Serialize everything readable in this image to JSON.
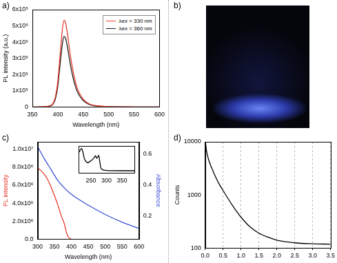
{
  "chart_data": [
    {
      "type": "line",
      "title": "a)",
      "x_label": "Wavelength (nm)",
      "y_label": "PL intensity (a.u.)",
      "x": [
        350,
        360,
        370,
        380,
        385,
        390,
        395,
        400,
        403,
        406,
        409,
        412,
        415,
        418,
        421,
        425,
        430,
        435,
        440,
        450,
        460,
        470,
        480,
        500,
        520,
        550,
        600
      ],
      "series": [
        {
          "name": "λex = 330 nm",
          "color": "#e8392b",
          "values": [
            0,
            500,
            1500,
            4000,
            8000,
            20000,
            60000,
            160000,
            270000,
            380000,
            480000,
            535000,
            520000,
            470000,
            400000,
            310000,
            220000,
            150000,
            100000,
            48000,
            22000,
            11000,
            6000,
            2000,
            1000,
            500,
            0
          ]
        },
        {
          "name": "λex = 360 nm",
          "color": "#1a1a1a",
          "values": [
            0,
            400,
            1200,
            3200,
            6500,
            16000,
            48000,
            130000,
            220000,
            310000,
            390000,
            435000,
            425000,
            385000,
            330000,
            255000,
            180000,
            122000,
            82000,
            40000,
            18000,
            9000,
            5000,
            1600,
            800,
            400,
            0
          ]
        }
      ],
      "xlim": [
        350,
        600
      ],
      "xticks": [
        350,
        400,
        450,
        500,
        550,
        600
      ],
      "ylim": [
        0,
        600000
      ],
      "yticks": [
        0,
        {
          "value": 100000,
          "label": "1x10⁵"
        },
        {
          "value": 200000,
          "label": "2x10⁵"
        },
        {
          "value": 300000,
          "label": "3x10⁵"
        },
        {
          "value": 400000,
          "label": "4x10⁵"
        },
        {
          "value": 500000,
          "label": "5x10⁵"
        },
        {
          "value": 600000,
          "label": "6x10⁵"
        }
      ],
      "grid": false,
      "legend": "upper right"
    },
    {
      "type": "image",
      "title": "b)"
    },
    {
      "type": "line",
      "title": "c)",
      "x_label": "Wavelength (nm)",
      "y_label": "PL intensity",
      "y2_label": "Absorbance",
      "series": [
        {
          "color": "#e8392b",
          "x": [
            300,
            310,
            320,
            330,
            340,
            350,
            360,
            370,
            380,
            385,
            390,
            395,
            400
          ],
          "values": [
            7900000,
            7600000,
            7200000,
            6600000,
            5800000,
            4800000,
            3800000,
            2600000,
            1600000,
            800000,
            300000,
            100000,
            0
          ]
        },
        {
          "color": "#3a4fd6",
          "axis": "y2",
          "x": [
            300,
            320,
            340,
            360,
            380,
            400,
            420,
            450,
            500,
            550,
            600
          ],
          "values": [
            0.65,
            0.57,
            0.5,
            0.43,
            0.38,
            0.34,
            0.31,
            0.27,
            0.21,
            0.16,
            0.12
          ]
        }
      ],
      "xlim": [
        300,
        600
      ],
      "xticks": [
        300,
        350,
        400,
        450,
        500,
        550,
        600
      ],
      "ylim": [
        0,
        10800000
      ],
      "yticks": [
        {
          "value": 0,
          "label": "0.0"
        },
        {
          "value": 2000000,
          "label": "2.0x10⁶"
        },
        {
          "value": 4000000,
          "label": "4.0x10⁶"
        },
        {
          "value": 6000000,
          "label": "6.0x10⁶"
        },
        {
          "value": 8000000,
          "label": "8.0x10⁶"
        },
        {
          "value": 10000000,
          "label": "1.0x10⁷"
        }
      ],
      "y2lim": [
        0.05,
        0.68
      ],
      "y2ticks": [
        0.2,
        0.4,
        0.6
      ],
      "grid": false,
      "inset": {
        "type": "line",
        "color": "#000000",
        "x": [
          212,
          216,
          220,
          224,
          228,
          232,
          236,
          240,
          245,
          250,
          255,
          260,
          265,
          268,
          272,
          275,
          278,
          282,
          290,
          300,
          350,
          390
        ],
        "values": [
          0.85,
          0.95,
          1.0,
          0.85,
          0.62,
          0.5,
          0.44,
          0.42,
          0.45,
          0.5,
          0.55,
          0.62,
          0.7,
          0.6,
          0.65,
          0.72,
          0.5,
          0.2,
          0.12,
          0.1,
          0.09,
          0.09
        ],
        "xlim": [
          210,
          390
        ],
        "xticks": [
          250,
          300,
          350
        ],
        "ylim": [
          0,
          1.1
        ],
        "tick_labels": "x"
      }
    },
    {
      "type": "line",
      "title": "d)",
      "y_label": "Counts",
      "x": [
        0,
        0.005,
        0.03,
        0.06,
        0.1,
        0.15,
        0.2,
        0.3,
        0.4,
        0.5,
        0.75,
        1.0,
        1.25,
        1.5,
        1.75,
        2.0,
        2.5,
        3.0,
        3.5
      ],
      "series": [
        {
          "color": "#000000",
          "values": [
            100,
            9500,
            7200,
            5600,
            4500,
            3600,
            3000,
            2100,
            1550,
            1200,
            650,
            380,
            250,
            190,
            160,
            140,
            125,
            120,
            118
          ]
        }
      ],
      "xlim": [
        0,
        3.5
      ],
      "xticks": [
        {
          "value": 0,
          "label": "0.0"
        },
        0.5,
        {
          "value": 1,
          "label": "1.0"
        },
        1.5,
        {
          "value": 2,
          "label": "2.0"
        },
        2.5,
        {
          "value": 3,
          "label": "3.0"
        },
        3.5
      ],
      "ylim": [
        100,
        10000
      ],
      "yticks": [
        100,
        1000,
        10000
      ],
      "log": "y",
      "grid": "x"
    }
  ]
}
